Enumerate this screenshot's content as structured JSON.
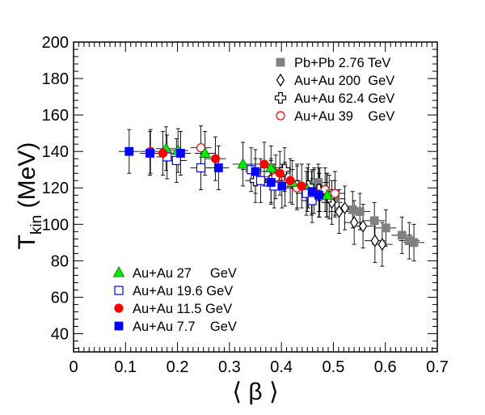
{
  "chart_data": {
    "type": "scatter",
    "title": "",
    "xlabel": "⟨ β ⟩",
    "ylabel": "T",
    "ylabel_sub": "kin",
    "ylabel_unit": " (MeV)",
    "xlim": [
      0,
      0.7
    ],
    "ylim": [
      30,
      200
    ],
    "x_ticks": [
      "0",
      "0.1",
      "0.2",
      "0.3",
      "0.4",
      "0.5",
      "0.6",
      "0.7"
    ],
    "y_ticks": [
      "40",
      "60",
      "80",
      "100",
      "120",
      "140",
      "160",
      "180",
      "200"
    ],
    "grid": false,
    "legend_placement": [
      "top-right",
      "bottom-left"
    ],
    "series": [
      {
        "name": "Pb+Pb 2.76 TeV",
        "marker": "square",
        "fill": "#808080",
        "stroke": "#808080",
        "x": [
          0.463,
          0.471,
          0.503,
          0.537,
          0.551,
          0.579,
          0.601,
          0.632,
          0.646,
          0.655
        ],
        "y": [
          121,
          123,
          114,
          108,
          107,
          102,
          98,
          94,
          91,
          90
        ],
        "xerr": [
          0.02,
          0.02,
          0.02,
          0.02,
          0.02,
          0.02,
          0.02,
          0.02,
          0.02,
          0.02
        ],
        "yerr": [
          10,
          10,
          10,
          10,
          10,
          10,
          10,
          10,
          10,
          10
        ]
      },
      {
        "name": "Au+Au 200  GeV",
        "marker": "diamond",
        "fill": "#ffffff",
        "stroke": "#000000",
        "x": [
          0.474,
          0.487,
          0.497,
          0.511,
          0.522,
          0.54,
          0.557,
          0.58,
          0.594
        ],
        "y": [
          119,
          116,
          112,
          107,
          109,
          101,
          99,
          91,
          89
        ],
        "xerr": [
          0.02,
          0.02,
          0.02,
          0.02,
          0.02,
          0.02,
          0.02,
          0.02,
          0.02
        ],
        "yerr": [
          12,
          12,
          12,
          12,
          12,
          12,
          12,
          12,
          12
        ]
      },
      {
        "name": "Au+Au 62.4 GeV",
        "marker": "cross",
        "fill": "#ffffff",
        "stroke": "#000000",
        "x": [
          0.35,
          0.38,
          0.406,
          0.43,
          0.452,
          0.472,
          0.492
        ],
        "y": [
          124,
          124,
          130,
          121,
          121,
          119,
          115
        ],
        "xerr": [
          0.02,
          0.02,
          0.02,
          0.02,
          0.02,
          0.02,
          0.02
        ],
        "yerr": [
          12,
          12,
          12,
          12,
          12,
          12,
          12
        ]
      },
      {
        "name": "Au+Au 39    GeV",
        "marker": "circle",
        "fill": "#ffffff",
        "stroke": "#ff0000",
        "x": [
          0.245,
          0.389,
          0.407,
          0.43,
          0.458,
          0.484,
          0.503
        ],
        "y": [
          142,
          126,
          122,
          120,
          117,
          119,
          117
        ],
        "xerr": [
          0.02,
          0.02,
          0.02,
          0.02,
          0.02,
          0.02,
          0.02
        ],
        "yerr": [
          12,
          12,
          12,
          12,
          12,
          12,
          12
        ]
      },
      {
        "name": "Au+Au 27     GeV",
        "marker": "triangle",
        "fill": "#00ee00",
        "stroke": "#006400",
        "x": [
          0.178,
          0.201,
          0.253,
          0.326,
          0.38,
          0.421,
          0.45,
          0.473,
          0.488
        ],
        "y": [
          141.5,
          140.5,
          139,
          133,
          131,
          123,
          119,
          116,
          116
        ],
        "xerr": [
          0.02,
          0.02,
          0.02,
          0.02,
          0.02,
          0.02,
          0.02,
          0.02,
          0.02
        ],
        "yerr": [
          12,
          12,
          12,
          12,
          12,
          12,
          12,
          12,
          12
        ]
      },
      {
        "name": "Au+Au 19.6 GeV",
        "marker": "open-square",
        "fill": "#ffffff",
        "stroke": "#0000ff",
        "x": [
          0.18,
          0.198,
          0.245,
          0.342,
          0.36,
          0.386,
          0.448,
          0.459
        ],
        "y": [
          137,
          135,
          131,
          130,
          124,
          121,
          117,
          113
        ],
        "xerr": [
          0.02,
          0.02,
          0.02,
          0.02,
          0.02,
          0.02,
          0.02,
          0.02
        ],
        "yerr": [
          12,
          12,
          12,
          12,
          12,
          12,
          12,
          12
        ]
      },
      {
        "name": "Au+Au 11.5 GeV",
        "marker": "circle",
        "fill": "#ff0000",
        "stroke": "#ff0000",
        "x": [
          0.148,
          0.172,
          0.273,
          0.367,
          0.397,
          0.417,
          0.439,
          0.463
        ],
        "y": [
          140,
          139,
          136,
          133,
          128,
          124,
          121,
          118
        ],
        "xerr": [
          0.02,
          0.02,
          0.02,
          0.02,
          0.02,
          0.02,
          0.02,
          0.02
        ],
        "yerr": [
          12,
          12,
          12,
          12,
          12,
          12,
          12,
          12
        ]
      },
      {
        "name": "Au+Au 7.7    GeV",
        "marker": "square",
        "fill": "#0000ff",
        "stroke": "#0000ff",
        "x": [
          0.107,
          0.147,
          0.206,
          0.279,
          0.35,
          0.38,
          0.401,
          0.459,
          0.472
        ],
        "y": [
          140,
          139,
          139,
          131,
          129,
          123,
          121,
          118,
          116
        ],
        "xerr": [
          0.02,
          0.02,
          0.02,
          0.02,
          0.02,
          0.02,
          0.02,
          0.02,
          0.02
        ],
        "yerr": [
          12,
          12,
          12,
          12,
          12,
          12,
          12,
          12,
          12
        ]
      }
    ],
    "legend_groups": [
      [
        "Pb+Pb 2.76 TeV",
        "Au+Au 200  GeV",
        "Au+Au 62.4 GeV",
        "Au+Au 39    GeV"
      ],
      [
        "Au+Au 27     GeV",
        "Au+Au 19.6 GeV",
        "Au+Au 11.5 GeV",
        "Au+Au 7.7    GeV"
      ]
    ]
  }
}
